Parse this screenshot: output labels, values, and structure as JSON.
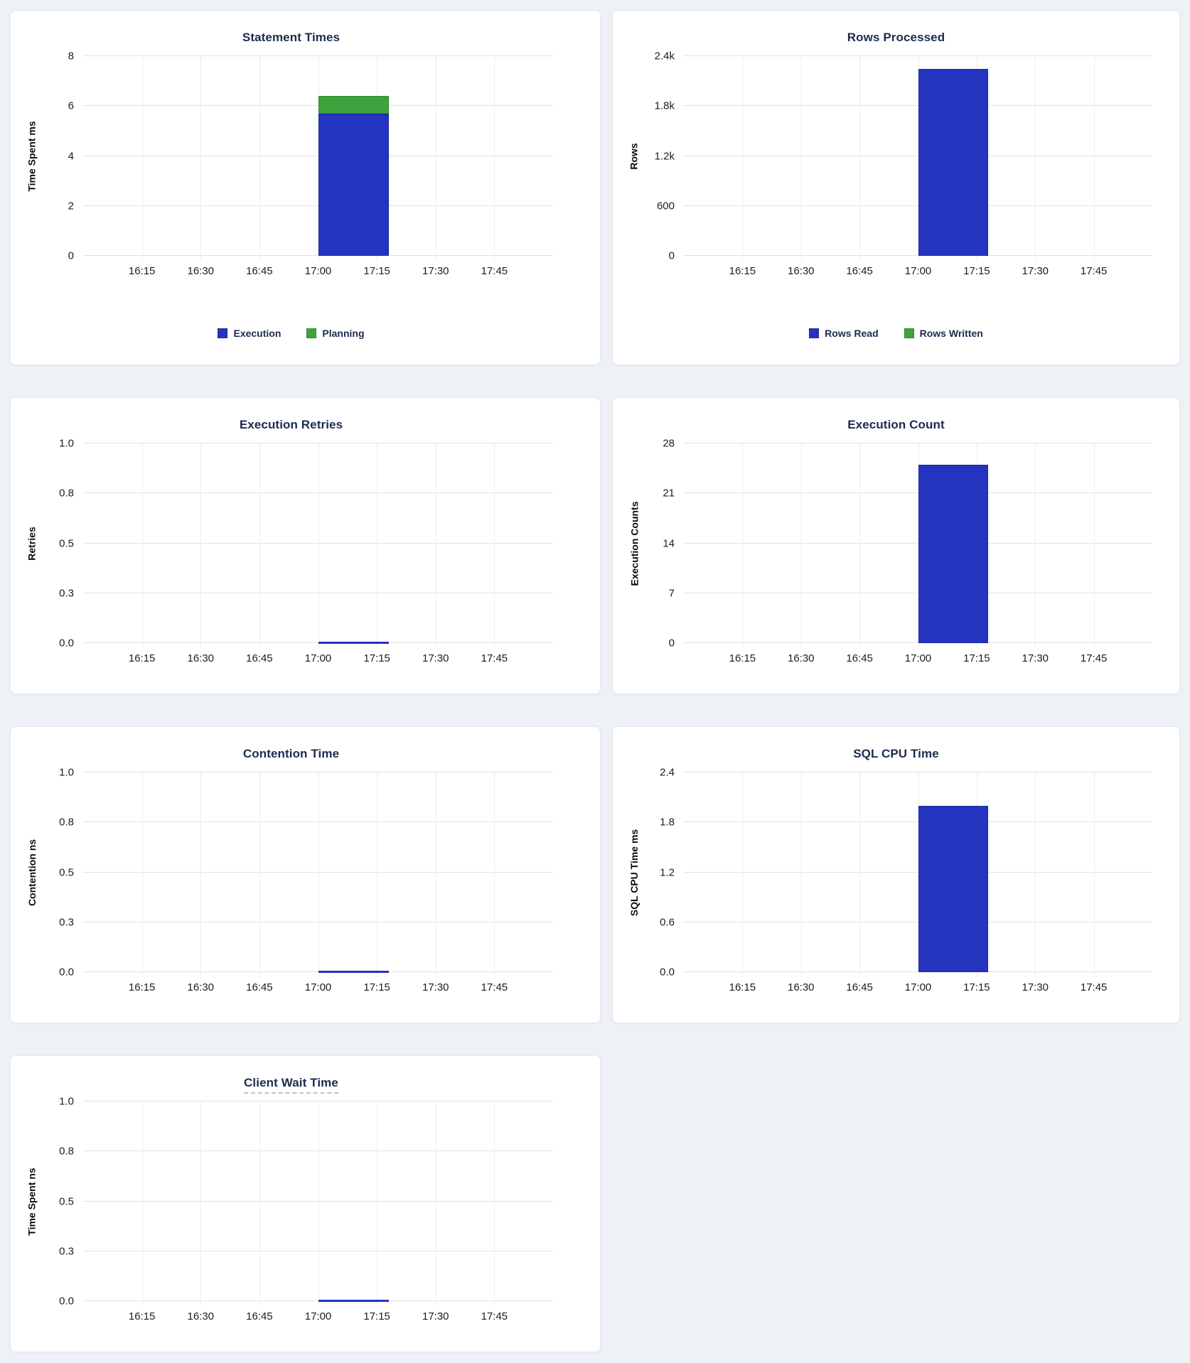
{
  "colors": {
    "bar_blue": "#2433c0",
    "bar_blue_border": "#1c2a9e",
    "bar_green": "#3da33c",
    "bar_green_border": "#2f8a30",
    "heading_navy": "#1c2b4e",
    "page_background": "#eef2f6"
  },
  "x_axis": {
    "range": [
      "16:00",
      "18:00"
    ],
    "ticks": [
      "16:15",
      "16:30",
      "16:45",
      "17:00",
      "17:15",
      "17:30",
      "17:45"
    ]
  },
  "chart_data": [
    {
      "id": "statement-times",
      "row": 1,
      "column": "left",
      "type": "bar",
      "title": "Statement Times",
      "ylabel": "Time Spent ms",
      "ymin": 0,
      "ymax": 8,
      "yticks": [
        "0",
        "2",
        "4",
        "6",
        "8"
      ],
      "stacked": true,
      "series": [
        {
          "name": "Execution",
          "color": "bar_blue",
          "points": [
            {
              "x_start": "17:00",
              "x_end": "17:18",
              "y": 5.7
            }
          ]
        },
        {
          "name": "Planning",
          "color": "bar_green",
          "points": [
            {
              "x_start": "17:00",
              "x_end": "17:18",
              "y": 0.7
            }
          ]
        }
      ],
      "legend": [
        {
          "label": "Execution",
          "color": "bar_blue"
        },
        {
          "label": "Planning",
          "color": "bar_green"
        }
      ]
    },
    {
      "id": "rows-processed",
      "row": 1,
      "column": "right",
      "type": "bar",
      "title": "Rows Processed",
      "ylabel": "Rows",
      "ymin": 0,
      "ymax": 2400,
      "yticks": [
        "0",
        "600",
        "1.2k",
        "1.8k",
        "2.4k"
      ],
      "stacked": true,
      "series": [
        {
          "name": "Rows Read",
          "color": "bar_blue",
          "points": [
            {
              "x_start": "17:00",
              "x_end": "17:18",
              "y": 2250
            }
          ]
        },
        {
          "name": "Rows Written",
          "color": "bar_green",
          "points": [
            {
              "x_start": "17:00",
              "x_end": "17:18",
              "y": 0
            }
          ]
        }
      ],
      "legend": [
        {
          "label": "Rows Read",
          "color": "bar_blue"
        },
        {
          "label": "Rows Written",
          "color": "bar_green"
        }
      ]
    },
    {
      "id": "execution-retries",
      "row": 2,
      "column": "left",
      "type": "line",
      "title": "Execution Retries",
      "ylabel": "Retries",
      "ymin": 0,
      "ymax": 1,
      "yticks": [
        "0.0",
        "0.3",
        "0.5",
        "0.8",
        "1.0"
      ],
      "series": [
        {
          "name": "Retries",
          "color": "bar_blue",
          "points": [
            {
              "x_start": "17:00",
              "x_end": "17:18",
              "y": 0
            }
          ]
        }
      ]
    },
    {
      "id": "execution-count",
      "row": 2,
      "column": "right",
      "type": "bar",
      "title": "Execution Count",
      "ylabel": "Execution Counts",
      "ymin": 0,
      "ymax": 28,
      "yticks": [
        "0",
        "7",
        "14",
        "21",
        "28"
      ],
      "series": [
        {
          "name": "Execution Count",
          "color": "bar_blue",
          "points": [
            {
              "x_start": "17:00",
              "x_end": "17:18",
              "y": 25
            }
          ]
        }
      ]
    },
    {
      "id": "contention-time",
      "row": 3,
      "column": "left",
      "type": "line",
      "title": "Contention Time",
      "ylabel": "Contention ns",
      "ymin": 0,
      "ymax": 1,
      "yticks": [
        "0.0",
        "0.3",
        "0.5",
        "0.8",
        "1.0"
      ],
      "series": [
        {
          "name": "Contention",
          "color": "bar_blue",
          "points": [
            {
              "x_start": "17:00",
              "x_end": "17:18",
              "y": 0
            }
          ]
        }
      ]
    },
    {
      "id": "sql-cpu-time",
      "row": 3,
      "column": "right",
      "type": "bar",
      "title": "SQL CPU Time",
      "ylabel": "SQL CPU Time ms",
      "ymin": 0,
      "ymax": 2.4,
      "yticks": [
        "0.0",
        "0.6",
        "1.2",
        "1.8",
        "2.4"
      ],
      "series": [
        {
          "name": "SQL CPU Time",
          "color": "bar_blue",
          "points": [
            {
              "x_start": "17:00",
              "x_end": "17:18",
              "y": 2.0
            }
          ]
        }
      ]
    },
    {
      "id": "client-wait-time",
      "row": 4,
      "column": "left",
      "type": "line",
      "title": "Client Wait Time",
      "title_tooltip": true,
      "ylabel": "Time Spent ns",
      "ymin": 0,
      "ymax": 1,
      "yticks": [
        "0.0",
        "0.3",
        "0.5",
        "0.8",
        "1.0"
      ],
      "series": [
        {
          "name": "Client Wait",
          "color": "bar_blue",
          "points": [
            {
              "x_start": "17:00",
              "x_end": "17:18",
              "y": 0
            }
          ]
        }
      ]
    }
  ]
}
